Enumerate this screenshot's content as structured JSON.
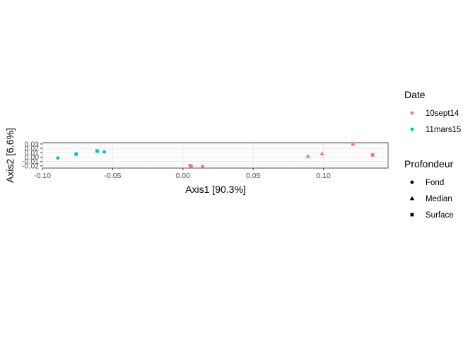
{
  "chart_data": {
    "type": "scatter",
    "xlabel": "Axis1   [90.3%]",
    "ylabel": "Axis2   [6.6%]",
    "xlim": [
      -0.1,
      0.146
    ],
    "ylim": [
      -0.025,
      0.033
    ],
    "x_ticks": [
      -0.1,
      -0.05,
      0.0,
      0.05,
      0.1
    ],
    "x_tick_labels": [
      "-0.10",
      "-0.05",
      "0.00",
      "0.05",
      "0.10"
    ],
    "y_ticks": [
      -0.02,
      -0.01,
      0.0,
      0.01,
      0.02,
      0.03
    ],
    "y_tick_labels": [
      "-0.02",
      "-0.01",
      "0.00",
      "0.01",
      "0.02",
      "0.03"
    ],
    "grid": true,
    "legend_position": "right",
    "legends": [
      {
        "title": "Date",
        "kind": "color",
        "entries": [
          {
            "label": "10sept14",
            "color": "#F8766D"
          },
          {
            "label": "11mars15",
            "color": "#00BFC4"
          }
        ]
      },
      {
        "title": "Profondeur",
        "kind": "shape",
        "entries": [
          {
            "label": "Fond",
            "shape": "circle"
          },
          {
            "label": "Median",
            "shape": "triangle"
          },
          {
            "label": "Surface",
            "shape": "square"
          }
        ]
      }
    ],
    "series": [
      {
        "date": "10sept14",
        "points": [
          {
            "x": 0.005,
            "y": -0.019,
            "shape": "circle"
          },
          {
            "x": 0.006,
            "y": -0.021,
            "shape": "circle"
          },
          {
            "x": 0.014,
            "y": -0.021,
            "shape": "circle"
          },
          {
            "x": 0.089,
            "y": 0.002,
            "shape": "triangle"
          },
          {
            "x": 0.099,
            "y": 0.008,
            "shape": "triangle"
          },
          {
            "x": 0.121,
            "y": 0.03,
            "shape": "square"
          },
          {
            "x": 0.135,
            "y": 0.005,
            "shape": "square"
          }
        ]
      },
      {
        "date": "11mars15",
        "points": [
          {
            "x": -0.089,
            "y": -0.002,
            "shape": "circle"
          },
          {
            "x": -0.056,
            "y": 0.012,
            "shape": "circle"
          },
          {
            "x": -0.076,
            "y": 0.007,
            "shape": "square"
          },
          {
            "x": -0.061,
            "y": 0.014,
            "shape": "square"
          }
        ]
      }
    ]
  }
}
